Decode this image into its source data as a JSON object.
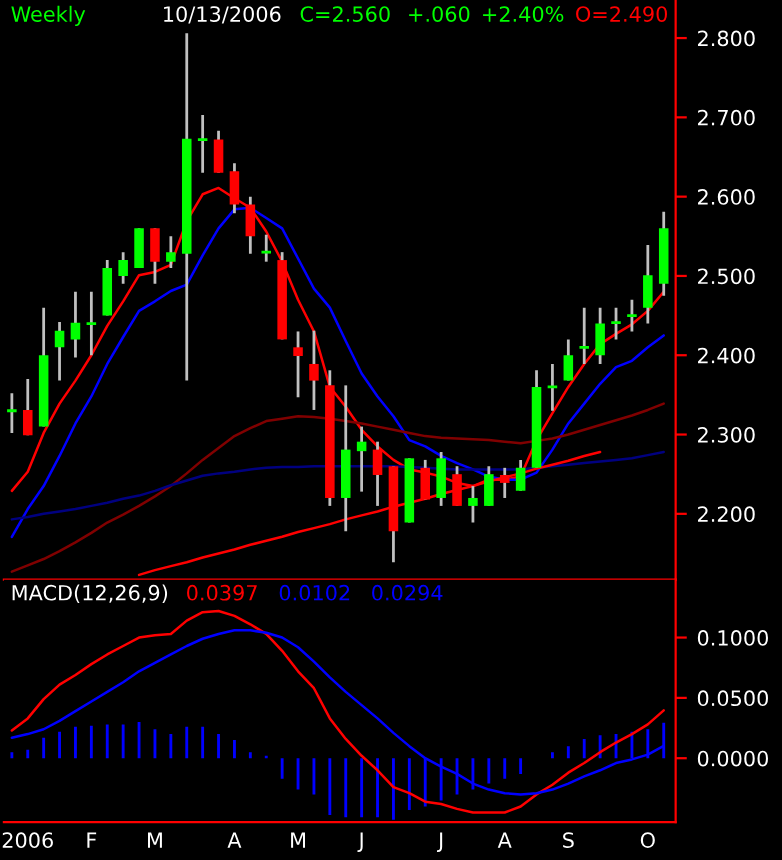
{
  "chart_data": [
    {
      "type": "candlestick",
      "title": "Weekly",
      "annotations": [
        "10/13/2006",
        "C=2.560",
        "+.060",
        "+2.40%",
        "O=2.490"
      ],
      "categories": [
        null,
        null,
        null,
        null,
        null,
        null,
        null,
        null,
        null,
        null,
        null,
        null,
        null,
        null,
        null,
        null,
        null,
        null,
        null,
        null,
        null,
        null,
        null,
        null,
        null,
        null,
        null,
        null,
        null,
        null,
        null,
        null,
        null,
        null,
        null,
        null,
        null,
        null,
        null,
        null,
        null,
        null
      ],
      "ohlc": [
        [
          2.33,
          2.352,
          2.302,
          2.33
        ],
        [
          2.331,
          2.37,
          2.299,
          2.299
        ],
        [
          2.31,
          2.46,
          2.31,
          2.4
        ],
        [
          2.41,
          2.442,
          2.368,
          2.431
        ],
        [
          2.42,
          2.48,
          2.397,
          2.441
        ],
        [
          2.44,
          2.48,
          2.4,
          2.44
        ],
        [
          2.45,
          2.52,
          2.45,
          2.51
        ],
        [
          2.5,
          2.53,
          2.49,
          2.52
        ],
        [
          2.51,
          2.56,
          2.51,
          2.56
        ],
        [
          2.56,
          2.56,
          2.49,
          2.518
        ],
        [
          2.518,
          2.55,
          2.51,
          2.53
        ],
        [
          2.528,
          2.806,
          2.368,
          2.673
        ],
        [
          2.672,
          2.703,
          2.63,
          2.672
        ],
        [
          2.672,
          2.683,
          2.63,
          2.63
        ],
        [
          2.632,
          2.642,
          2.579,
          2.59
        ],
        [
          2.59,
          2.6,
          2.528,
          2.55
        ],
        [
          2.53,
          2.552,
          2.518,
          2.53
        ],
        [
          2.52,
          2.53,
          2.42,
          2.42
        ],
        [
          2.41,
          2.43,
          2.347,
          2.399
        ],
        [
          2.389,
          2.431,
          2.331,
          2.368
        ],
        [
          2.362,
          2.381,
          2.21,
          2.22
        ],
        [
          2.22,
          2.362,
          2.178,
          2.281
        ],
        [
          2.279,
          2.31,
          2.228,
          2.291
        ],
        [
          2.281,
          2.291,
          2.21,
          2.249
        ],
        [
          2.26,
          2.26,
          2.139,
          2.178
        ],
        [
          2.189,
          2.27,
          2.189,
          2.27
        ],
        [
          2.258,
          2.268,
          2.218,
          2.218
        ],
        [
          2.22,
          2.278,
          2.21,
          2.27
        ],
        [
          2.25,
          2.26,
          2.21,
          2.21
        ],
        [
          2.21,
          2.235,
          2.189,
          2.22
        ],
        [
          2.21,
          2.26,
          2.21,
          2.25
        ],
        [
          2.249,
          2.258,
          2.22,
          2.239
        ],
        [
          2.229,
          2.268,
          2.229,
          2.258
        ],
        [
          2.258,
          2.381,
          2.258,
          2.36
        ],
        [
          2.36,
          2.389,
          2.33,
          2.36
        ],
        [
          2.368,
          2.42,
          2.368,
          2.4
        ],
        [
          2.41,
          2.46,
          2.389,
          2.41
        ],
        [
          2.4,
          2.46,
          2.389,
          2.44
        ],
        [
          2.441,
          2.46,
          2.42,
          2.441
        ],
        [
          2.45,
          2.47,
          2.43,
          2.45
        ],
        [
          2.46,
          2.539,
          2.44,
          2.501
        ],
        [
          2.49,
          2.581,
          2.475,
          2.56
        ]
      ],
      "series": [
        {
          "type": "line",
          "color": "#ff0000",
          "values": [
            2.229,
            2.253,
            2.302,
            2.339,
            2.368,
            2.4,
            2.437,
            2.468,
            2.501,
            2.505,
            2.514,
            2.569,
            2.603,
            2.611,
            2.598,
            2.586,
            2.556,
            2.518,
            2.47,
            2.43,
            2.36,
            2.335,
            2.306,
            2.285,
            2.268,
            2.256,
            2.252,
            2.247,
            2.239,
            2.235,
            2.243,
            2.243,
            2.247,
            2.293,
            2.327,
            2.36,
            2.389,
            2.414,
            2.427,
            2.439,
            2.456,
            2.48
          ]
        },
        {
          "type": "line",
          "color": "#0000ff",
          "values": [
            2.171,
            2.206,
            2.235,
            2.273,
            2.314,
            2.348,
            2.389,
            2.423,
            2.456,
            2.468,
            2.481,
            2.489,
            2.526,
            2.56,
            2.584,
            2.586,
            2.573,
            2.56,
            2.522,
            2.484,
            2.46,
            2.418,
            2.377,
            2.348,
            2.323,
            2.293,
            2.285,
            2.273,
            2.264,
            2.256,
            2.247,
            2.243,
            2.243,
            2.252,
            2.281,
            2.314,
            2.339,
            2.364,
            2.385,
            2.393,
            2.41,
            2.425
          ]
        },
        {
          "type": "line",
          "color": "#800000",
          "values": [
            2.127,
            2.135,
            2.143,
            2.153,
            2.164,
            2.176,
            2.189,
            2.199,
            2.21,
            2.222,
            2.235,
            2.251,
            2.268,
            2.283,
            2.298,
            2.308,
            2.317,
            2.32,
            2.323,
            2.322,
            2.32,
            2.317,
            2.314,
            2.31,
            2.306,
            2.302,
            2.298,
            2.296,
            2.295,
            2.294,
            2.293,
            2.291,
            2.289,
            2.292,
            2.295,
            2.3,
            2.306,
            2.312,
            2.318,
            2.324,
            2.331,
            2.339
          ]
        },
        {
          "type": "line",
          "color": "#000080",
          "values": [
            2.193,
            2.196,
            2.2,
            2.203,
            2.206,
            2.21,
            2.214,
            2.219,
            2.223,
            2.229,
            2.236,
            2.242,
            2.248,
            2.251,
            2.253,
            2.256,
            2.258,
            2.259,
            2.259,
            2.26,
            2.26,
            2.26,
            2.26,
            2.26,
            2.26,
            2.259,
            2.258,
            2.257,
            2.256,
            2.256,
            2.256,
            2.256,
            2.256,
            2.258,
            2.26,
            2.262,
            2.264,
            2.266,
            2.268,
            2.27,
            2.274,
            2.278
          ]
        },
        {
          "type": "line",
          "color": "#ff0000",
          "values": [
            null,
            null,
            null,
            null,
            null,
            null,
            null,
            null,
            2.123,
            2.129,
            2.134,
            2.139,
            2.145,
            2.15,
            2.155,
            2.161,
            2.166,
            2.171,
            2.177,
            2.182,
            2.187,
            2.193,
            2.198,
            2.203,
            2.209,
            2.214,
            2.219,
            2.225,
            2.23,
            2.235,
            2.241,
            2.246,
            2.251,
            2.257,
            2.262,
            2.267,
            2.273,
            2.278,
            null,
            null,
            null,
            null
          ]
        }
      ],
      "ylim": [
        2.117,
        2.848
      ],
      "yticks": [
        {
          "value": 2.2,
          "label": "2.200"
        },
        {
          "value": 2.3,
          "label": "2.300"
        },
        {
          "value": 2.4,
          "label": "2.400"
        },
        {
          "value": 2.5,
          "label": "2.500"
        },
        {
          "value": 2.6,
          "label": "2.600"
        },
        {
          "value": 2.7,
          "label": "2.700"
        },
        {
          "value": 2.8,
          "label": "2.800"
        }
      ],
      "tick_labels": "y",
      "grid": false,
      "legend": false
    },
    {
      "type": "line",
      "title": "MACD(12,26,9)",
      "annotations": [
        "0.0397",
        "0.0102",
        "0.0294"
      ],
      "categories": [
        null,
        "2006",
        null,
        null,
        null,
        "F",
        null,
        null,
        null,
        "M",
        null,
        null,
        null,
        null,
        "A",
        null,
        null,
        null,
        "M",
        null,
        null,
        null,
        "J",
        null,
        null,
        null,
        null,
        "J",
        null,
        null,
        null,
        "A",
        null,
        null,
        null,
        "S",
        null,
        null,
        null,
        null,
        "O",
        null
      ],
      "series": [
        {
          "type": "line",
          "color": "#ff0000",
          "values": [
            0.023,
            0.033,
            0.049,
            0.061,
            0.069,
            0.078,
            0.086,
            0.093,
            0.1,
            0.102,
            0.103,
            0.114,
            0.121,
            0.122,
            0.118,
            0.111,
            0.103,
            0.089,
            0.072,
            0.058,
            0.033,
            0.016,
            0.002,
            -0.01,
            -0.024,
            -0.029,
            -0.036,
            -0.038,
            -0.042,
            -0.045,
            -0.045,
            -0.045,
            -0.04,
            -0.03,
            -0.022,
            -0.012,
            -0.004,
            0.005,
            0.013,
            0.02,
            0.028,
            0.0397
          ]
        },
        {
          "type": "line",
          "color": "#0000ff",
          "values": [
            0.017,
            0.02,
            0.024,
            0.031,
            0.039,
            0.047,
            0.055,
            0.063,
            0.072,
            0.079,
            0.086,
            0.093,
            0.099,
            0.103,
            0.106,
            0.106,
            0.104,
            0.1,
            0.092,
            0.08,
            0.067,
            0.055,
            0.044,
            0.033,
            0.021,
            0.01,
            0,
            -0.007,
            -0.013,
            -0.021,
            -0.026,
            -0.029,
            -0.03,
            -0.029,
            -0.026,
            -0.021,
            -0.015,
            -0.01,
            -0.004,
            -0.001,
            0.003,
            0.0102
          ]
        },
        {
          "type": "bar",
          "color": "#0000ff",
          "values": [
            0.005,
            0.007,
            0.017,
            0.022,
            0.026,
            0.027,
            0.028,
            0.028,
            0.03,
            0.024,
            0.02,
            0.026,
            0.026,
            0.02,
            0.015,
            0.005,
            0.002,
            -0.017,
            -0.026,
            -0.03,
            -0.047,
            -0.049,
            -0.049,
            -0.049,
            -0.051,
            -0.043,
            -0.04,
            -0.035,
            -0.03,
            -0.026,
            -0.021,
            -0.017,
            -0.013,
            null,
            0.005,
            0.01,
            0.016,
            0.019,
            0.02,
            0.022,
            0.024,
            0.0294
          ]
        }
      ],
      "ylim": [
        -0.053,
        0.148
      ],
      "yticks": [
        {
          "value": 0,
          "label": "0.0000"
        },
        {
          "value": 0.05,
          "label": "0.0500"
        },
        {
          "value": 0.1,
          "label": "0.1000"
        }
      ],
      "grid": false,
      "legend": false
    }
  ]
}
